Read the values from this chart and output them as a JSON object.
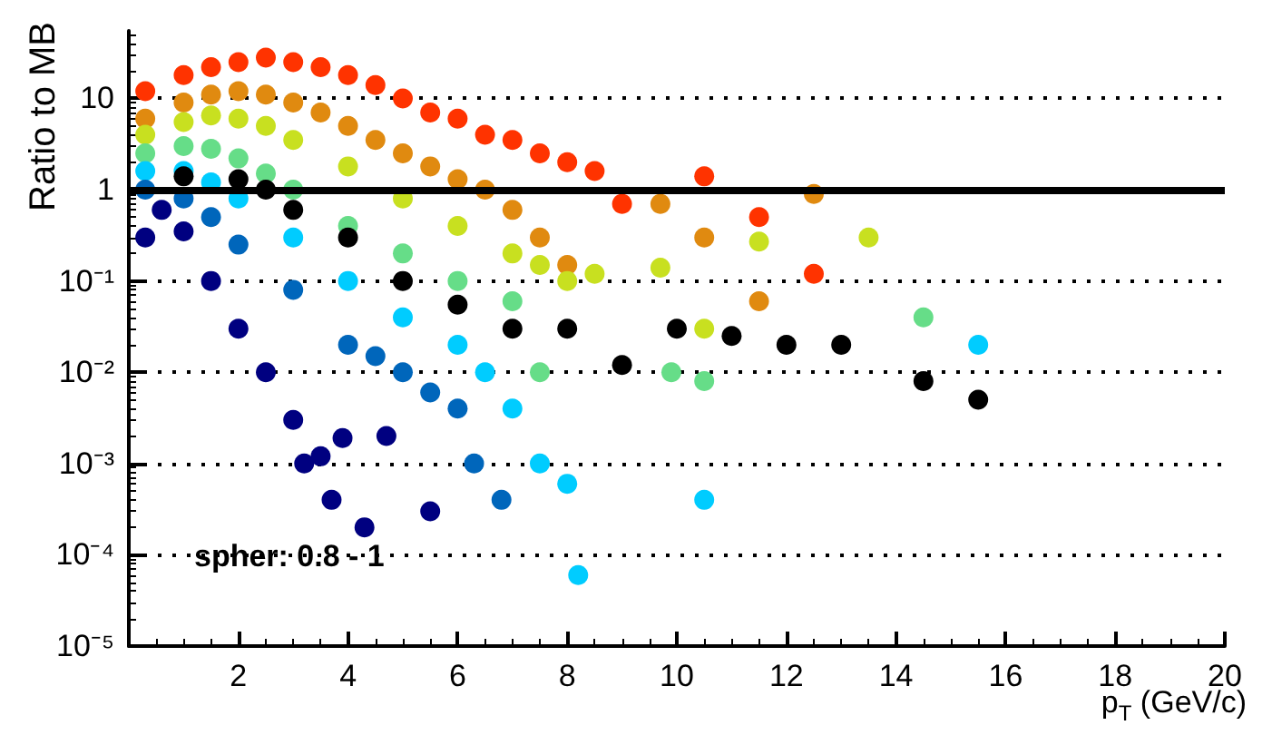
{
  "chart_data": {
    "type": "scatter",
    "xlabel": "p$_{T}$ (GeV/c)",
    "ylabel": "Ratio to MB",
    "annotations": [
      "spher: 0.8 - 1"
    ],
    "log": "y",
    "grid": "y",
    "marker": "circle",
    "xlim": [
      0,
      20
    ],
    "xticks": [
      2,
      4,
      6,
      8,
      10,
      12,
      14,
      16,
      18,
      20
    ],
    "ylim": [
      1e-05,
      55
    ],
    "yticks": [
      {
        "value": 1e-05,
        "label": "10⁻⁵"
      },
      {
        "value": 0.0001,
        "label": "10⁻⁴"
      },
      {
        "value": 0.001,
        "label": "10⁻³"
      },
      {
        "value": 0.01,
        "label": "10⁻²"
      },
      {
        "value": 0.1,
        "label": "10⁻¹"
      },
      1,
      10
    ],
    "ref_lines": [
      {
        "axis": "y",
        "value": 1,
        "color": "#000000"
      }
    ],
    "series": [
      {
        "color": "#ff3300",
        "x": [
          0.3,
          1,
          1.5,
          2,
          2.5,
          3,
          3.5,
          4,
          4.5,
          5,
          5.5,
          6,
          6.5,
          7,
          7.5,
          8,
          8.5,
          9,
          10.5,
          11.5,
          12.5
        ],
        "values": [
          12,
          18,
          22,
          25,
          28,
          25,
          22,
          18,
          14,
          10,
          7,
          6,
          4,
          3.5,
          2.5,
          2,
          1.6,
          0.7,
          1.4,
          0.5,
          0.12
        ]
      },
      {
        "color": "#e08a10",
        "x": [
          0.3,
          1,
          1.5,
          2,
          2.5,
          3,
          3.5,
          4,
          4.5,
          5,
          5.5,
          6,
          6.5,
          7,
          7.5,
          8,
          9.7,
          10.5,
          11.5,
          12.5
        ],
        "values": [
          6,
          9,
          11,
          12,
          11,
          9,
          7,
          5,
          3.5,
          2.5,
          1.8,
          1.3,
          1,
          0.6,
          0.3,
          0.15,
          0.7,
          0.3,
          0.06,
          0.9
        ]
      },
      {
        "color": "#c8e020",
        "x": [
          0.3,
          1,
          1.5,
          2,
          2.5,
          3,
          4,
          5,
          6,
          7,
          7.5,
          8,
          8.5,
          9.7,
          10.5,
          11.5,
          13.5
        ],
        "values": [
          4,
          5.5,
          6.5,
          6,
          5,
          3.5,
          1.8,
          0.8,
          0.4,
          0.2,
          0.15,
          0.1,
          0.12,
          0.14,
          0.03,
          0.27,
          0.3
        ]
      },
      {
        "color": "#66dd88",
        "x": [
          0.3,
          1,
          1.5,
          2,
          2.5,
          3,
          4,
          5,
          6,
          7,
          7.5,
          9.9,
          10.5,
          14.5
        ],
        "values": [
          2.5,
          3,
          2.8,
          2.2,
          1.5,
          1,
          0.4,
          0.2,
          0.1,
          0.06,
          0.01,
          0.01,
          0.008,
          0.04
        ]
      },
      {
        "color": "#00ccff",
        "x": [
          0.3,
          1,
          1.5,
          2,
          3,
          4,
          5,
          6,
          6.5,
          7,
          7.5,
          8,
          8.2,
          10.5,
          15.5
        ],
        "values": [
          1.6,
          1.6,
          1.2,
          0.8,
          0.3,
          0.1,
          0.04,
          0.02,
          0.01,
          0.004,
          0.001,
          0.0006,
          6e-05,
          0.0004,
          0.02
        ]
      },
      {
        "color": "#0066bb",
        "x": [
          0.3,
          1,
          1.5,
          2,
          3,
          4,
          4.5,
          5,
          5.5,
          6,
          6.3,
          6.8
        ],
        "values": [
          1,
          0.8,
          0.5,
          0.25,
          0.08,
          0.02,
          0.015,
          0.01,
          0.006,
          0.004,
          0.001,
          0.0004
        ]
      },
      {
        "color": "#000080",
        "x": [
          0.3,
          0.6,
          1,
          1.5,
          2,
          2.5,
          3,
          3.2,
          3.5,
          3.7,
          3.9,
          4.3,
          4.7,
          5.5
        ],
        "values": [
          0.3,
          0.6,
          0.35,
          0.1,
          0.03,
          0.01,
          0.003,
          0.001,
          0.0012,
          0.0004,
          0.0019,
          0.0002,
          0.002,
          0.0003
        ]
      },
      {
        "color": "#000000",
        "x": [
          1,
          2,
          2.5,
          3,
          4,
          5,
          6,
          7,
          8,
          9,
          10,
          11,
          12,
          13,
          14.5,
          15.5
        ],
        "values": [
          1.4,
          1.3,
          1,
          0.6,
          0.3,
          0.1,
          0.055,
          0.03,
          0.03,
          0.012,
          0.03,
          0.025,
          0.02,
          0.02,
          0.008,
          0.005
        ]
      }
    ]
  }
}
